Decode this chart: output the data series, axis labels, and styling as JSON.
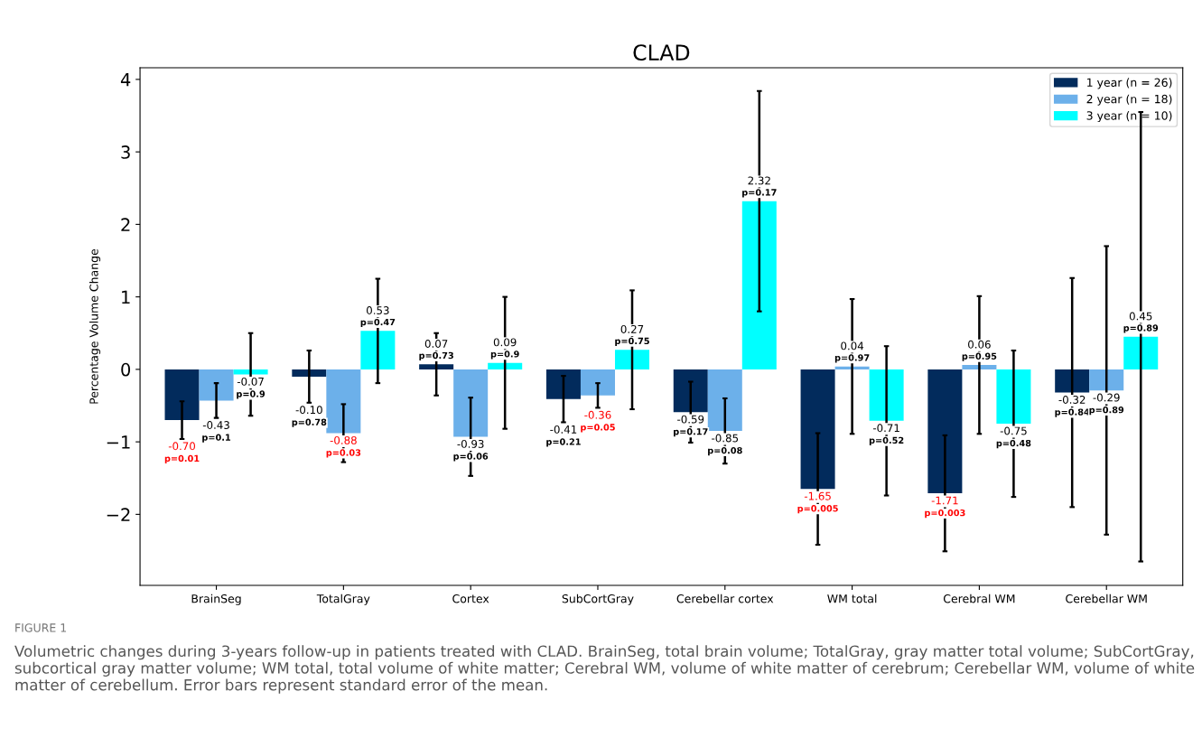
{
  "chart_data": {
    "type": "bar",
    "title": "CLAD",
    "ylabel": "Percentage Volume Change",
    "categories": [
      "BrainSeg",
      "TotalGray",
      "Cortex",
      "SubCortGray",
      "Cerebellar cortex",
      "WM total",
      "Cerebral WM",
      "Cerebellar WM"
    ],
    "series": [
      {
        "name": "1 year (n = 26)",
        "color": "#022b5c",
        "values": [
          -0.7,
          -0.1,
          0.07,
          -0.41,
          -0.59,
          -1.65,
          -1.71,
          -0.32
        ],
        "errors": [
          0.26,
          0.36,
          0.43,
          0.32,
          0.42,
          0.77,
          0.8,
          1.58
        ],
        "value_labels": [
          "-0.70\np=0.01",
          "-0.10\np=0.78",
          "0.07\np=0.73",
          "-0.41\np=0.21",
          "-0.59\np=0.17",
          "-1.65\np=0.005",
          "-1.71\np=0.003",
          "-0.32\np=0.84"
        ]
      },
      {
        "name": "2 year (n = 18)",
        "color": "#6cb0ea",
        "values": [
          -0.43,
          -0.88,
          -0.93,
          -0.36,
          -0.85,
          0.04,
          0.06,
          -0.29
        ],
        "errors": [
          0.24,
          0.4,
          0.54,
          0.17,
          0.45,
          0.93,
          0.95,
          1.99
        ],
        "value_labels": [
          "-0.43\np=0.1",
          "-0.88\np=0.03",
          "-0.93\np=0.06",
          "-0.36\np=0.05",
          "-0.85\np=0.08",
          "0.04\np=0.97",
          "0.06\np=0.95",
          "-0.29\np=0.89"
        ]
      },
      {
        "name": "3 year (n = 10)",
        "color": "#00ffff",
        "values": [
          -0.07,
          0.53,
          0.09,
          0.27,
          2.32,
          -0.71,
          -0.75,
          0.45
        ],
        "errors": [
          0.57,
          0.72,
          0.91,
          0.82,
          1.52,
          1.03,
          1.01,
          3.1
        ],
        "value_labels": [
          "-0.07\np=0.9",
          "0.53\np=0.47",
          "0.09\np=0.9",
          "0.27\np=0.75",
          "2.32\np=0.17",
          "-0.71\np=0.52",
          "-0.75\np=0.48",
          "0.45\np=0.89"
        ]
      }
    ],
    "ylim": [
      -2.98,
      4.16
    ],
    "yticks": [
      {
        "value": -2,
        "label": "−2"
      },
      {
        "value": -1,
        "label": "−1"
      },
      0,
      1,
      2,
      3,
      4
    ],
    "grid": false,
    "legend": "top right",
    "annotations": [
      "FIGURE 1",
      "Volumetric changes during 3-years follow-up in patients treated with CLAD. BrainSeg, total brain volume; TotalGray, gray matter total volume; SubCortGray, subcortical gray matter volume; WM total, total volume of white matter; Cerebral WM, volume of white matter of cerebrum; Cerebellar WM, volume of white matter of cerebellum. Error bars represent standard error of the mean."
    ]
  }
}
